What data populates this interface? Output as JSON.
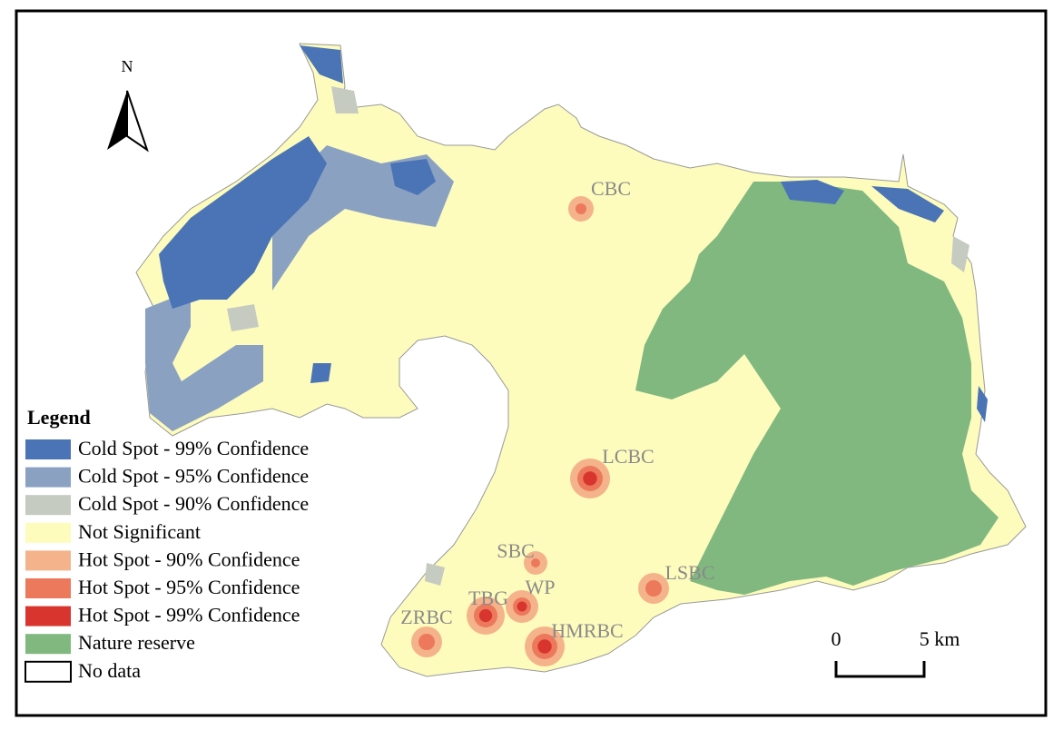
{
  "north_label": "N",
  "legend": {
    "title": "Legend",
    "items": [
      {
        "label": "Cold Spot - 99% Confidence",
        "color": "#4a74b6"
      },
      {
        "label": "Cold Spot - 95% Confidence",
        "color": "#8aa1c2"
      },
      {
        "label": "Cold Spot - 90% Confidence",
        "color": "#c5cbc0"
      },
      {
        "label": "Not Significant",
        "color": "#fdfcbd"
      },
      {
        "label": "Hot Spot - 90% Confidence",
        "color": "#f4b38b"
      },
      {
        "label": "Hot Spot - 95% Confidence",
        "color": "#ec795b"
      },
      {
        "label": "Hot Spot - 99% Confidence",
        "color": "#d8352f"
      },
      {
        "label": "Nature reserve",
        "color": "#80b880"
      },
      {
        "label": "No data",
        "color": "#ffffff"
      }
    ]
  },
  "place_labels": [
    "CBC",
    "LCBC",
    "SBC",
    "LSBC",
    "WP",
    "TBG",
    "ZRBC",
    "HMRBC"
  ],
  "scale_bar": {
    "start_label": "0",
    "end_label": "5 km"
  }
}
